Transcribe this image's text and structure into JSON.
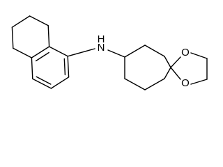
{
  "atoms": [
    "H",
    "N",
    "O",
    "O"
  ]
}
